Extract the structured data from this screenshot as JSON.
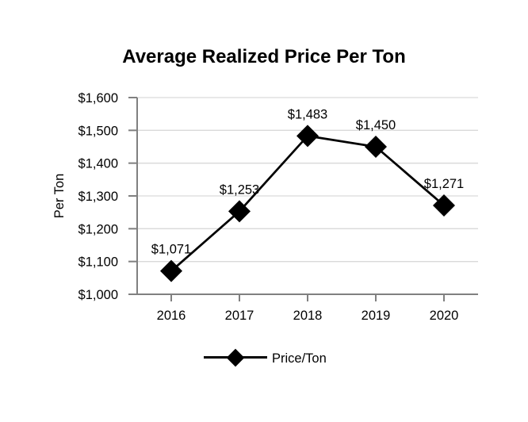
{
  "chart_data": {
    "type": "line",
    "title": "Average Realized Price Per Ton",
    "xlabel": "",
    "ylabel": "Per Ton",
    "categories": [
      "2016",
      "2017",
      "2018",
      "2019",
      "2020"
    ],
    "series": [
      {
        "name": "Price/Ton",
        "values": [
          1071,
          1253,
          1483,
          1450,
          1271
        ],
        "marker": "diamond"
      }
    ],
    "point_labels": [
      "$1,071",
      "$1,253",
      "$1,483",
      "$1,450",
      "$1,271"
    ],
    "ylim": [
      1000,
      1600
    ],
    "ytick_step": 100,
    "ytick_labels": [
      "$1,000",
      "$1,100",
      "$1,200",
      "$1,300",
      "$1,400",
      "$1,500",
      "$1,600"
    ],
    "grid": true,
    "legend": {
      "position": "bottom",
      "entries": [
        "Price/Ton"
      ]
    }
  },
  "colors": {
    "background": "#ffffff",
    "text": "#000000",
    "axis": "#808080",
    "gridline": "#d9d9d9",
    "series": "#000000"
  }
}
